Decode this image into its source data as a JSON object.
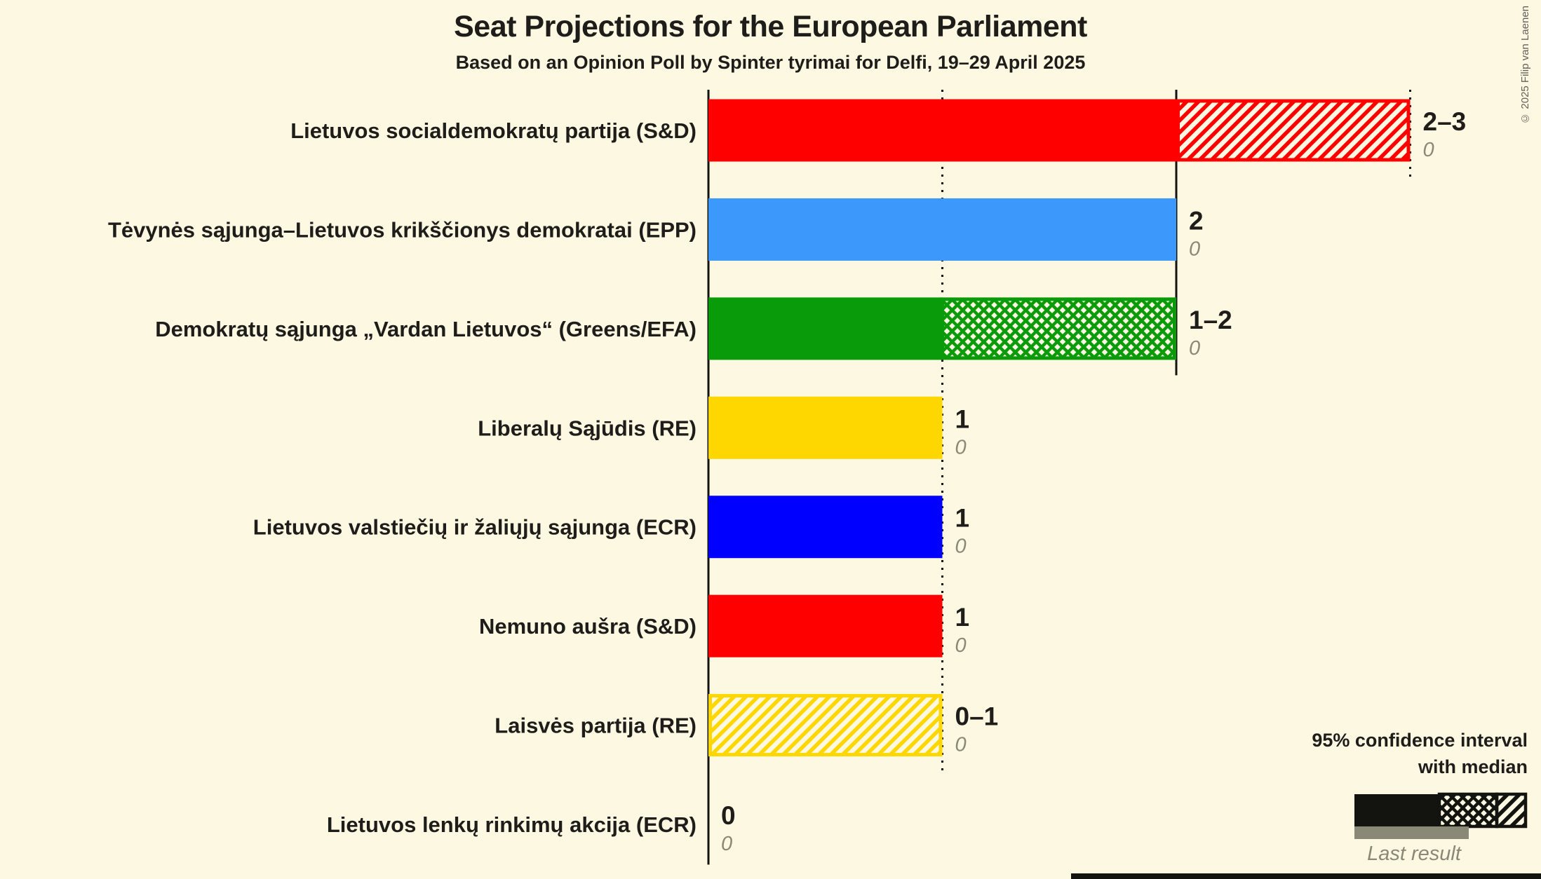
{
  "title": "Seat Projections for the European Parliament",
  "subtitle": "Based on an Opinion Poll by Spinter tyrimai for Delfi, 19–29 April 2025",
  "copyright": "© 2025 Filip van Laenen",
  "legend": {
    "line1": "95% confidence interval",
    "line2": "with median",
    "last_result_label": "Last result"
  },
  "colors": {
    "background": "#FCF8E2",
    "text": "#1E1D1A",
    "gray": "#8A8876",
    "line_black": "#131310"
  },
  "chart_data": {
    "type": "bar",
    "orientation": "horizontal",
    "unit": "seats",
    "x_axis": {
      "min": 0,
      "max": 3
    },
    "gridlines": [
      {
        "value": 1,
        "style": "dotted"
      },
      {
        "value": 2,
        "style": "solid"
      },
      {
        "value": 3,
        "style": "dotted"
      }
    ],
    "parties": [
      {
        "name": "Lietuvos socialdemokratų partija (S&D)",
        "color": "#FF0000",
        "ci_low": 2,
        "median": 2,
        "ci_high": 3,
        "label": "2–3",
        "last_result": 0,
        "last_result_label": "0"
      },
      {
        "name": "Tėvynės sąjunga–Lietuvos krikščionys demokratai (EPP)",
        "color": "#3C99FB",
        "ci_low": 2,
        "median": 2,
        "ci_high": 2,
        "label": "2",
        "last_result": 0,
        "last_result_label": "0"
      },
      {
        "name": "Demokratų sąjunga „Vardan Lietuvos“ (Greens/EFA)",
        "color": "#0A9B0A",
        "ci_low": 1,
        "median": 2,
        "ci_high": 2,
        "label": "1–2",
        "last_result": 0,
        "last_result_label": "0"
      },
      {
        "name": "Liberalų Sąjūdis (RE)",
        "color": "#FFD700",
        "ci_low": 1,
        "median": 1,
        "ci_high": 1,
        "label": "1",
        "last_result": 0,
        "last_result_label": "0"
      },
      {
        "name": "Lietuvos valstiečių ir žaliųjų sąjunga (ECR)",
        "color": "#0000FF",
        "ci_low": 1,
        "median": 1,
        "ci_high": 1,
        "label": "1",
        "last_result": 0,
        "last_result_label": "0"
      },
      {
        "name": "Nemuno aušra (S&D)",
        "color": "#FF0000",
        "ci_low": 1,
        "median": 1,
        "ci_high": 1,
        "label": "1",
        "last_result": 0,
        "last_result_label": "0"
      },
      {
        "name": "Laisvės partija (RE)",
        "color": "#FFD700",
        "ci_low": 0,
        "median": 0,
        "ci_high": 1,
        "label": "0–1",
        "last_result": 0,
        "last_result_label": "0"
      },
      {
        "name": "Lietuvos lenkų rinkimų akcija (ECR)",
        "color": "#FF0000",
        "ci_low": 0,
        "median": 0,
        "ci_high": 0,
        "label": "0",
        "last_result": 0,
        "last_result_label": "0"
      }
    ]
  }
}
